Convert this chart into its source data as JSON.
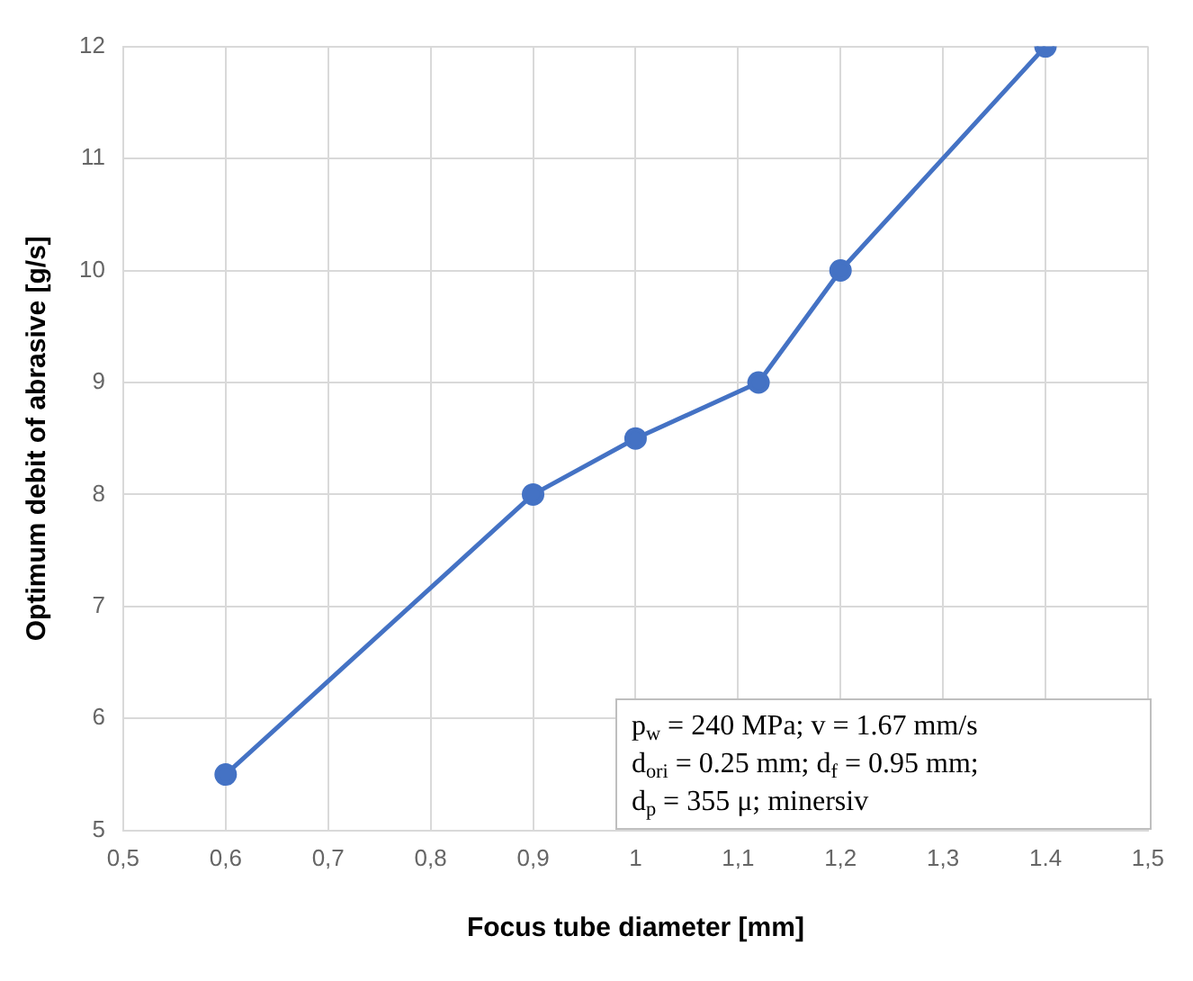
{
  "chart_data": {
    "type": "line",
    "xlabel": "Focus tube diameter [mm]",
    "ylabel": "Optimum debit of abrasive [g/s]",
    "x": [
      0.6,
      0.9,
      1.0,
      1.12,
      1.2,
      1.4
    ],
    "series": [
      {
        "color": "#4472c4",
        "values": [
          5.5,
          8,
          8.5,
          9,
          10,
          12
        ]
      }
    ],
    "xlim": [
      0.5,
      1.5
    ],
    "xticks": [
      {
        "value": 0.5,
        "label": "0,5"
      },
      {
        "value": 0.6,
        "label": "0,6"
      },
      {
        "value": 0.7,
        "label": "0,7"
      },
      {
        "value": 0.8,
        "label": "0,8"
      },
      {
        "value": 0.9,
        "label": "0,9"
      },
      1,
      {
        "value": 1.1,
        "label": "1,1"
      },
      {
        "value": 1.2,
        "label": "1,2"
      },
      {
        "value": 1.3,
        "label": "1,3"
      },
      1.4,
      {
        "value": 1.5,
        "label": "1,5"
      }
    ],
    "ylim": [
      5,
      12
    ],
    "yticks": [
      5,
      6,
      7,
      8,
      9,
      10,
      11,
      12
    ],
    "grid": true,
    "legend": false,
    "marker": "circle",
    "line_style": "solid",
    "annotations": [
      "p$_{w}$ = 240 MPa; v = 1.67 mm/s",
      "d$_{ori}$ = 0.25 mm; d$_{f}$ = 0.95 mm;",
      "d$_{p}$ = 355 μ; minersiv"
    ]
  }
}
